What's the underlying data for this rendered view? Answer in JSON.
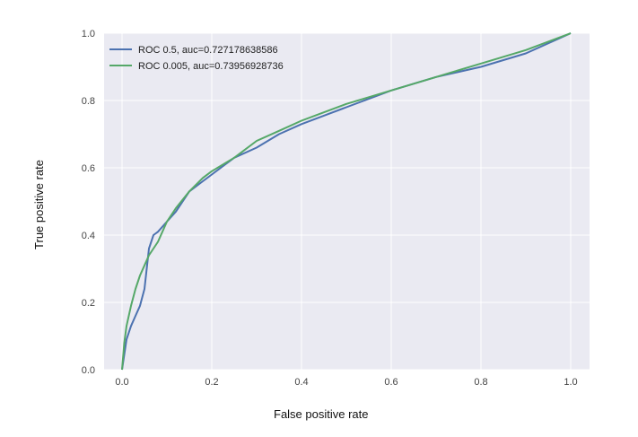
{
  "chart_data": {
    "type": "line",
    "title": "",
    "xlabel": "False positive rate",
    "ylabel": "True positive rate",
    "xlim": [
      0.0,
      1.0
    ],
    "ylim": [
      0.0,
      1.0
    ],
    "xticks": [
      "0.0",
      "0.2",
      "0.4",
      "0.6",
      "0.8",
      "1.0"
    ],
    "yticks": [
      "0.0",
      "0.2",
      "0.4",
      "0.6",
      "0.8",
      "1.0"
    ],
    "grid": true,
    "legend_position": "top-left",
    "background_color": "#eaeaf2",
    "series": [
      {
        "name": "ROC 0.5, auc=0.727178638586",
        "color": "#4c72b0",
        "x": [
          0.0,
          0.01,
          0.02,
          0.03,
          0.04,
          0.05,
          0.06,
          0.07,
          0.08,
          0.1,
          0.12,
          0.15,
          0.18,
          0.2,
          0.25,
          0.3,
          0.35,
          0.4,
          0.5,
          0.6,
          0.7,
          0.8,
          0.9,
          1.0
        ],
        "y": [
          0.0,
          0.09,
          0.13,
          0.16,
          0.19,
          0.24,
          0.36,
          0.4,
          0.41,
          0.44,
          0.47,
          0.53,
          0.56,
          0.58,
          0.63,
          0.66,
          0.7,
          0.73,
          0.78,
          0.83,
          0.87,
          0.9,
          0.94,
          1.0
        ]
      },
      {
        "name": "ROC 0.005, auc=0.73956928736",
        "color": "#55a868",
        "x": [
          0.0,
          0.005,
          0.01,
          0.02,
          0.03,
          0.04,
          0.05,
          0.06,
          0.08,
          0.1,
          0.12,
          0.15,
          0.18,
          0.2,
          0.25,
          0.3,
          0.35,
          0.4,
          0.5,
          0.6,
          0.7,
          0.8,
          0.9,
          1.0
        ],
        "y": [
          0.0,
          0.08,
          0.13,
          0.19,
          0.24,
          0.28,
          0.31,
          0.34,
          0.38,
          0.44,
          0.48,
          0.53,
          0.57,
          0.59,
          0.63,
          0.68,
          0.71,
          0.74,
          0.79,
          0.83,
          0.87,
          0.91,
          0.95,
          1.0
        ]
      }
    ]
  }
}
